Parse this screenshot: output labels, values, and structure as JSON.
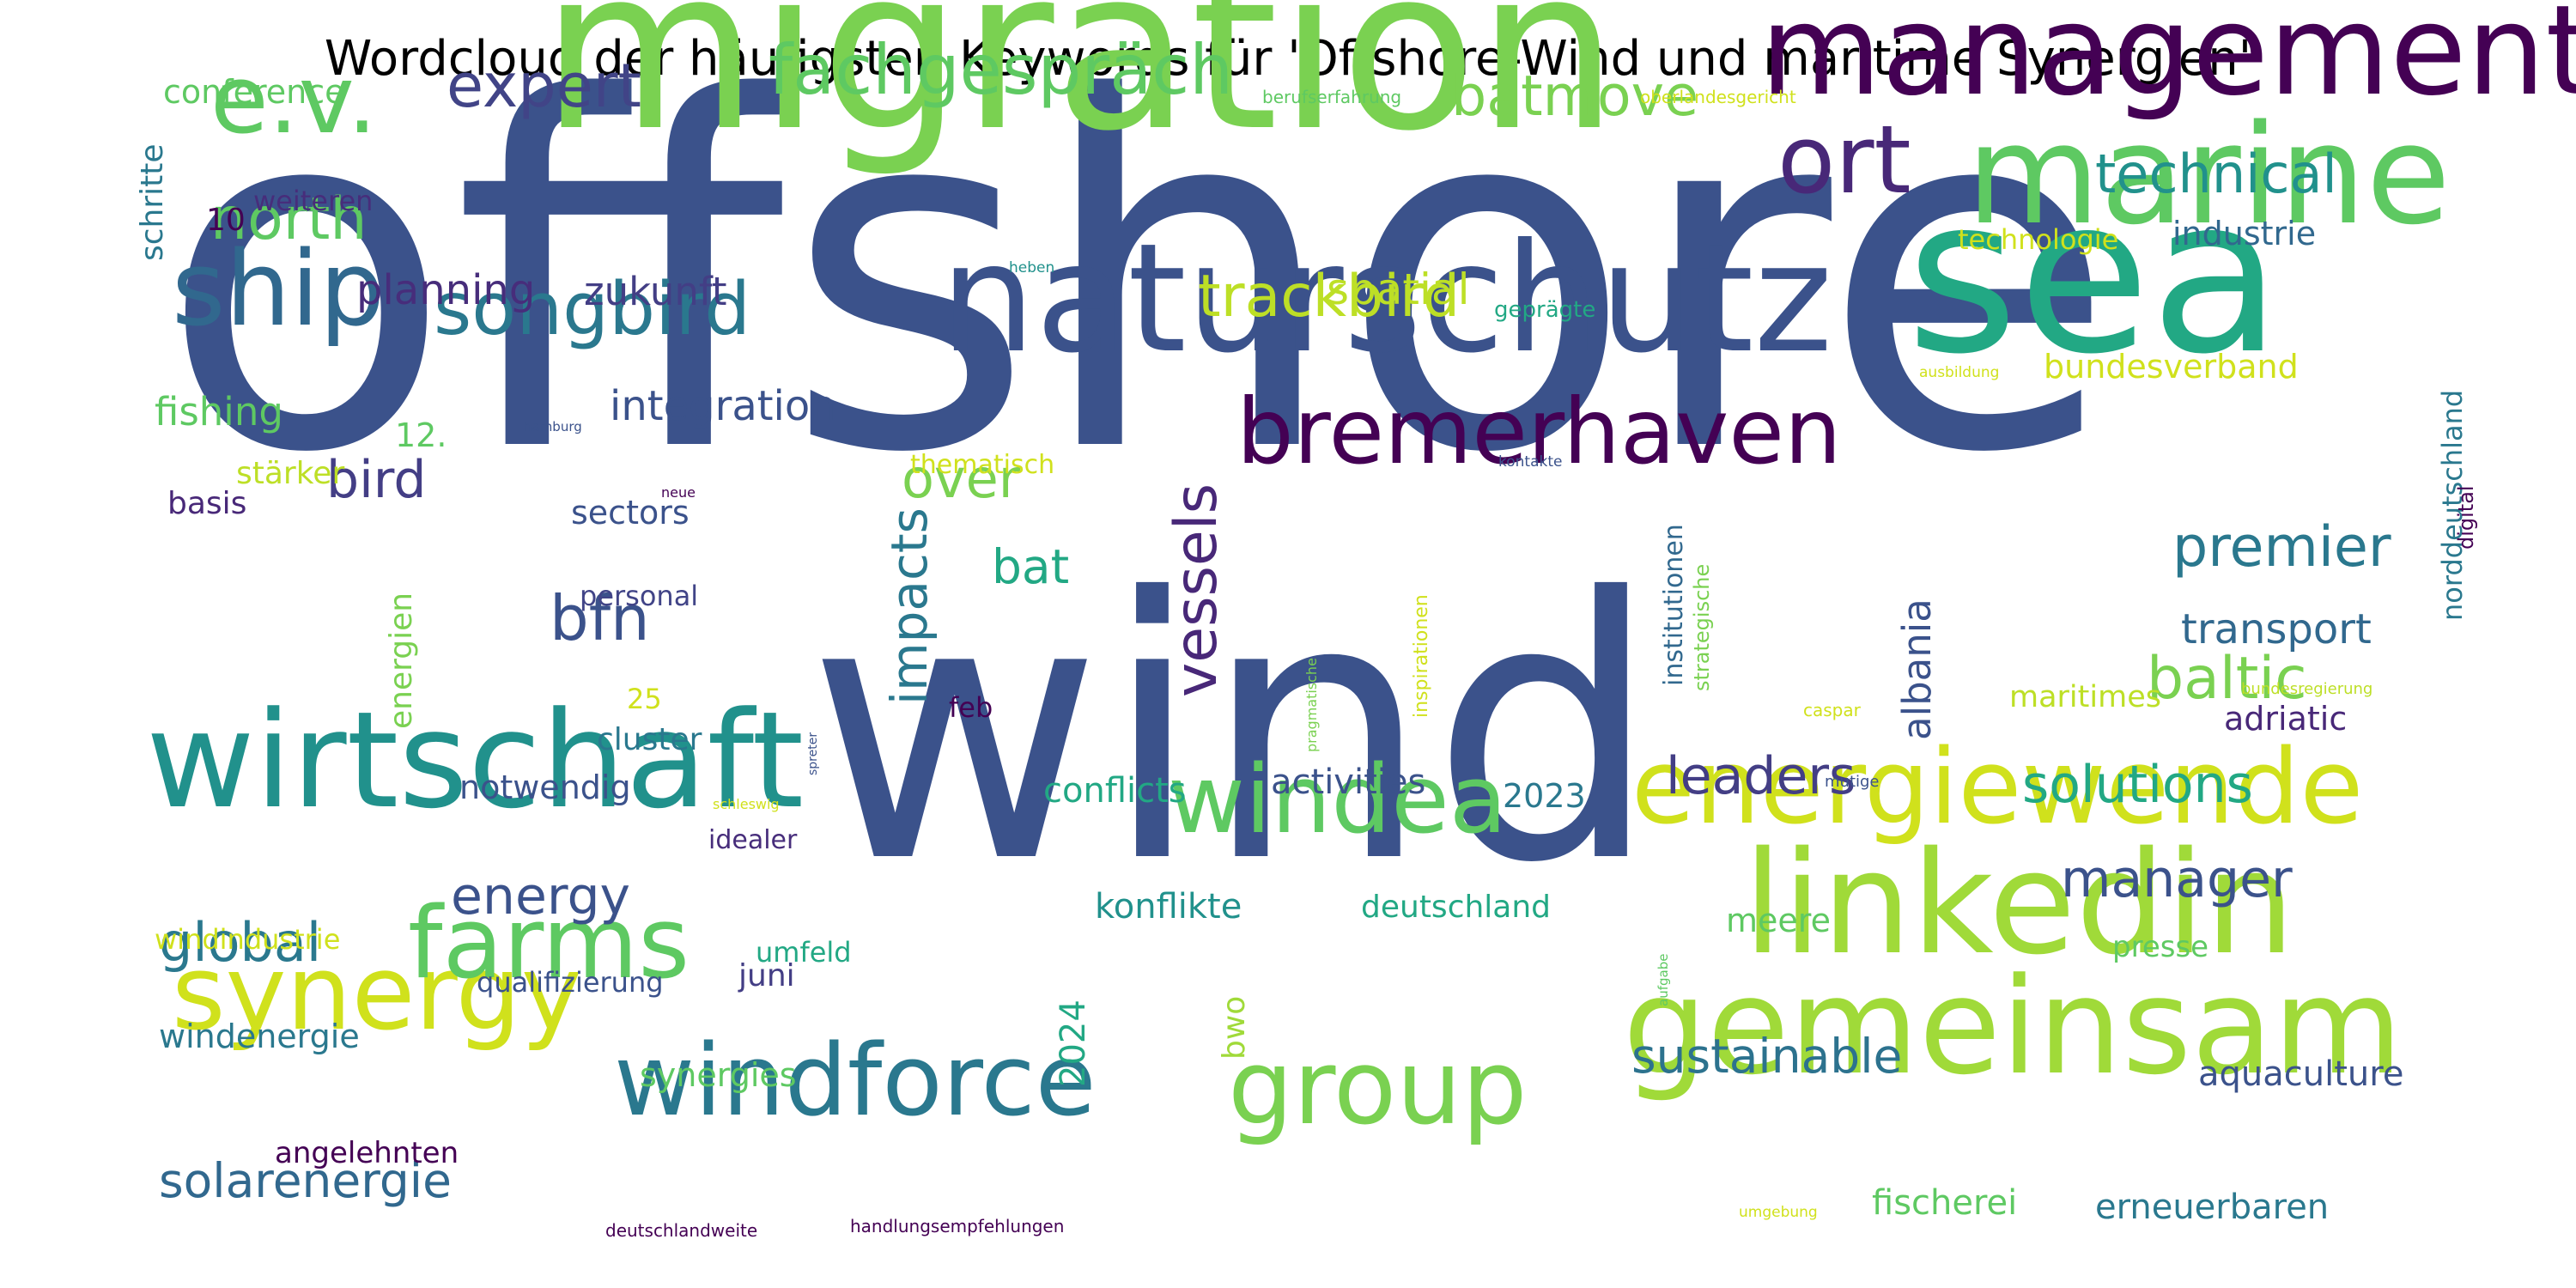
{
  "title": "Wordcloud der häufigsten Keywords für 'Offshore-Wind und maritime Synergien'",
  "words": [
    {
      "text": "offshore",
      "color": "#3b528b"
    },
    {
      "text": "wind",
      "color": "#3b528b"
    },
    {
      "text": "migration",
      "color": "#7ad151"
    },
    {
      "text": "sea",
      "color": "#22a884"
    },
    {
      "text": "naturschutz",
      "color": "#3b528b"
    },
    {
      "text": "marine",
      "color": "#5ec962"
    },
    {
      "text": "management",
      "color": "#440154"
    },
    {
      "text": "wirtschaft",
      "color": "#21918c"
    },
    {
      "text": "linkedin",
      "color": "#a0da39"
    },
    {
      "text": "gemeinsam",
      "color": "#a0da39"
    },
    {
      "text": "energiewende",
      "color": "#d0e11c"
    },
    {
      "text": "windforce",
      "color": "#2a788e"
    },
    {
      "text": "group",
      "color": "#7ad151"
    },
    {
      "text": "synergy",
      "color": "#d0e11c"
    },
    {
      "text": "farms",
      "color": "#5ec962"
    },
    {
      "text": "ship",
      "color": "#31688e"
    },
    {
      "text": "bremerhaven",
      "color": "#440154"
    },
    {
      "text": "e.v.",
      "color": "#5ec962"
    },
    {
      "text": "windea",
      "color": "#5ec962"
    },
    {
      "text": "ort",
      "color": "#482878"
    },
    {
      "text": "songbird",
      "color": "#2a788e"
    },
    {
      "text": "fachgespräch",
      "color": "#5ec962"
    },
    {
      "text": "expert",
      "color": "#414487"
    },
    {
      "text": "batmove",
      "color": "#7ad151"
    },
    {
      "text": "technical",
      "color": "#21918c"
    },
    {
      "text": "north",
      "color": "#5ec962"
    },
    {
      "text": "bfn",
      "color": "#3b528b"
    },
    {
      "text": "trackbird",
      "color": "#bddf26"
    },
    {
      "text": "vessels",
      "color": "#482878"
    },
    {
      "text": "impacts",
      "color": "#2a788e"
    },
    {
      "text": "premier",
      "color": "#2a788e"
    },
    {
      "text": "baltic",
      "color": "#7ad151"
    },
    {
      "text": "leaders",
      "color": "#433e85"
    },
    {
      "text": "solutions",
      "color": "#22a884"
    },
    {
      "text": "manager",
      "color": "#3b528b"
    },
    {
      "text": "sustainable",
      "color": "#2c728e"
    },
    {
      "text": "global",
      "color": "#2a788e"
    },
    {
      "text": "energy",
      "color": "#3b528b"
    },
    {
      "text": "solarenergie",
      "color": "#31688e"
    },
    {
      "text": "integration",
      "color": "#3b528b"
    },
    {
      "text": "bird",
      "color": "#433e85"
    },
    {
      "text": "over",
      "color": "#7ad151"
    },
    {
      "text": "bat",
      "color": "#22a884"
    },
    {
      "text": "planning",
      "color": "#472d7b"
    },
    {
      "text": "zukunft",
      "color": "#433e85"
    },
    {
      "text": "spatial",
      "color": "#bddf26"
    },
    {
      "text": "transport",
      "color": "#31688e"
    },
    {
      "text": "albania",
      "color": "#3b528b"
    },
    {
      "text": "fishing",
      "color": "#5ec962"
    },
    {
      "text": "conference",
      "color": "#5ec962"
    },
    {
      "text": "industrie",
      "color": "#31688e"
    },
    {
      "text": "technologie",
      "color": "#d0e11c"
    },
    {
      "text": "bundesverband",
      "color": "#d0e11c"
    },
    {
      "text": "norddeutschland",
      "color": "#2a788e"
    },
    {
      "text": "adriatic",
      "color": "#482878"
    },
    {
      "text": "activities",
      "color": "#3b528b"
    },
    {
      "text": "conflicts",
      "color": "#22a884"
    },
    {
      "text": "2023",
      "color": "#2a788e"
    },
    {
      "text": "konflikte",
      "color": "#21918c"
    },
    {
      "text": "deutschland",
      "color": "#22a884"
    },
    {
      "text": "meere",
      "color": "#5ec962"
    },
    {
      "text": "presse",
      "color": "#5ec962"
    },
    {
      "text": "aquaculture",
      "color": "#3b528b"
    },
    {
      "text": "fischerei",
      "color": "#5ec962"
    },
    {
      "text": "erneuerbaren",
      "color": "#2a788e"
    },
    {
      "text": "synergies",
      "color": "#5ec962"
    },
    {
      "text": "juni",
      "color": "#433e85"
    },
    {
      "text": "2024",
      "color": "#22a884"
    },
    {
      "text": "bwo",
      "color": "#a0da39"
    },
    {
      "text": "windenergie",
      "color": "#2a788e"
    },
    {
      "text": "qualifizierung",
      "color": "#3b528b"
    },
    {
      "text": "umfeld",
      "color": "#22a884"
    },
    {
      "text": "windindustrie",
      "color": "#d0e11c"
    },
    {
      "text": "angelehnten",
      "color": "#440154"
    },
    {
      "text": "notwendig",
      "color": "#3b528b"
    },
    {
      "text": "idealer",
      "color": "#472d7b"
    },
    {
      "text": "cluster",
      "color": "#2a788e"
    },
    {
      "text": "25",
      "color": "#d0e11c"
    },
    {
      "text": "energien",
      "color": "#7ad151"
    },
    {
      "text": "feb",
      "color": "#440154"
    },
    {
      "text": "personal",
      "color": "#414487"
    },
    {
      "text": "sectors",
      "color": "#3b528b"
    },
    {
      "text": "thematisch",
      "color": "#d0e11c"
    },
    {
      "text": "stärker",
      "color": "#bddf26"
    },
    {
      "text": "basis",
      "color": "#482878"
    },
    {
      "text": "12.",
      "color": "#5ec962"
    },
    {
      "text": "weiteren",
      "color": "#472d7b"
    },
    {
      "text": "10",
      "color": "#440154"
    },
    {
      "text": "schritte",
      "color": "#2a788e"
    },
    {
      "text": "geprägte",
      "color": "#22a884"
    },
    {
      "text": "institutionen",
      "color": "#31688e"
    },
    {
      "text": "strategische",
      "color": "#7ad151"
    },
    {
      "text": "inspirationen",
      "color": "#d0e11c"
    },
    {
      "text": "maritimes",
      "color": "#bddf26"
    },
    {
      "text": "digital",
      "color": "#440154"
    },
    {
      "text": "berufserfahrung",
      "color": "#5ec962"
    },
    {
      "text": "oberlandesgericht",
      "color": "#d0e11c"
    },
    {
      "text": "heben",
      "color": "#21918c"
    },
    {
      "text": "ausbildung",
      "color": "#d0e11c"
    },
    {
      "text": "hamburg",
      "color": "#3b528b"
    },
    {
      "text": "kontakte",
      "color": "#3b528b"
    },
    {
      "text": "neue",
      "color": "#440154"
    },
    {
      "text": "pragmatische",
      "color": "#7ad151"
    },
    {
      "text": "caspar",
      "color": "#d0e11c"
    },
    {
      "text": "bundesregierung",
      "color": "#bddf26"
    },
    {
      "text": "mutige",
      "color": "#3b528b"
    },
    {
      "text": "spreter",
      "color": "#3b528b"
    },
    {
      "text": "schleswig",
      "color": "#d0e11c"
    },
    {
      "text": "aufgabe",
      "color": "#5ec962"
    },
    {
      "text": "umgebung",
      "color": "#d0e11c"
    },
    {
      "text": "deutschlandweite",
      "color": "#440154"
    },
    {
      "text": "handlungsempfehlungen",
      "color": "#440154"
    }
  ]
}
